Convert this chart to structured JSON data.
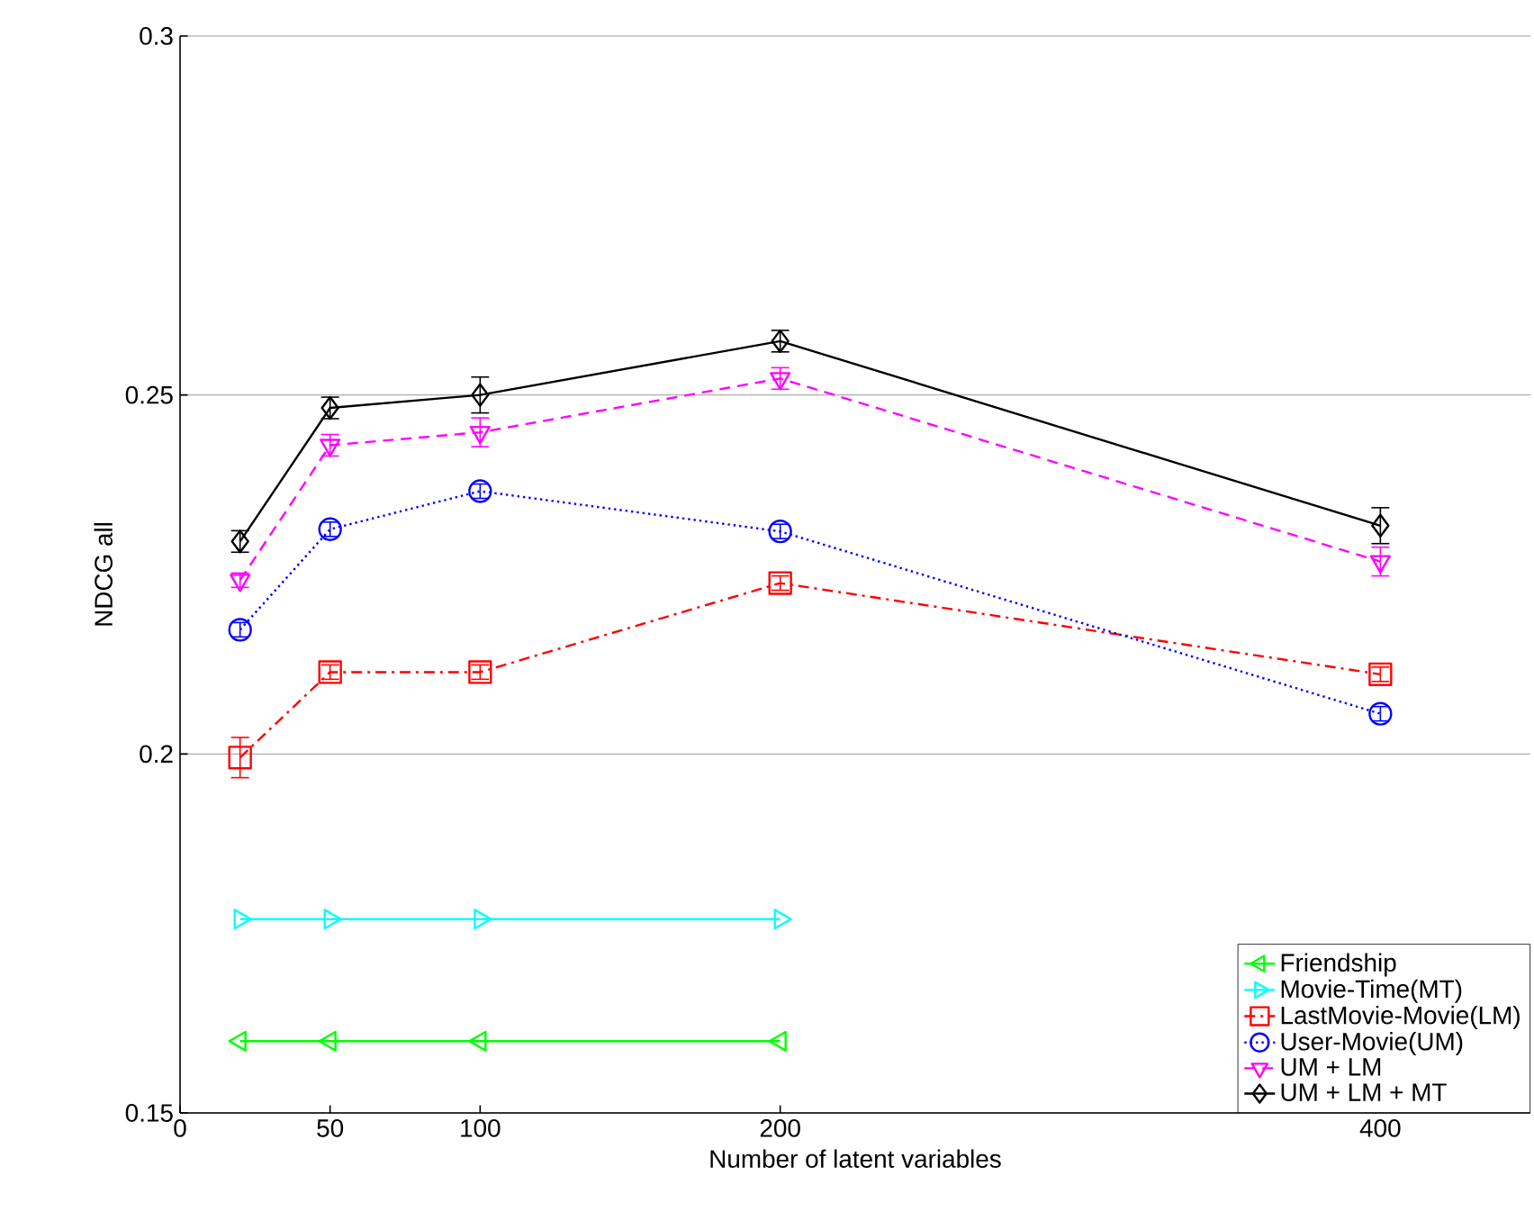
{
  "chart_data": {
    "type": "line",
    "xlabel": "Number of latent variables",
    "ylabel": "NDCG all",
    "x": [
      20,
      50,
      100,
      200,
      400
    ],
    "xlim": [
      0,
      450
    ],
    "xticks": [
      0,
      50,
      100,
      200,
      400
    ],
    "ylim": [
      0.15,
      0.3
    ],
    "yticks": [
      0.15,
      0.2,
      0.25,
      0.3
    ],
    "grid": "y",
    "legend": "bottom right",
    "series": [
      {
        "name": "Friendship",
        "color": "#00ff00",
        "marker": "triangle left",
        "line_style": "solid",
        "values": [
          0.16,
          0.16,
          0.16,
          0.16,
          null
        ]
      },
      {
        "name": "Movie-Time(MT)",
        "color": "#00ffff",
        "marker": "triangle right",
        "line_style": "solid",
        "values": [
          0.177,
          0.177,
          0.177,
          0.177,
          null
        ]
      },
      {
        "name": "LastMovie-Movie(LM)",
        "color": "#ff0000",
        "marker": "square",
        "line_style": "dashdot",
        "values": [
          0.1995,
          0.2114,
          0.2114,
          0.2238,
          0.2111
        ],
        "errors": [
          0.0028,
          0.001,
          0.001,
          0.001,
          0.001
        ]
      },
      {
        "name": "User-Movie(UM)",
        "color": "#0000ff",
        "marker": "circle",
        "line_style": "dotted",
        "values": [
          0.2173,
          0.2313,
          0.2366,
          0.231,
          0.2056
        ],
        "errors": [
          0.001,
          0.001,
          0.001,
          0.001,
          0.001
        ]
      },
      {
        "name": "UM + LM",
        "color": "#ff00ff",
        "marker": "triangle down",
        "line_style": "dashed",
        "values": [
          0.2242,
          0.243,
          0.2448,
          0.2523,
          0.2268
        ],
        "errors": [
          0.001,
          0.0015,
          0.002,
          0.0015,
          0.002
        ]
      },
      {
        "name": "UM + LM + MT",
        "color": "#000000",
        "marker": "diamond",
        "line_style": "solid",
        "values": [
          0.2296,
          0.2482,
          0.25,
          0.2575,
          0.2318
        ],
        "errors": [
          0.0015,
          0.0015,
          0.0025,
          0.0015,
          0.0025
        ]
      }
    ]
  }
}
